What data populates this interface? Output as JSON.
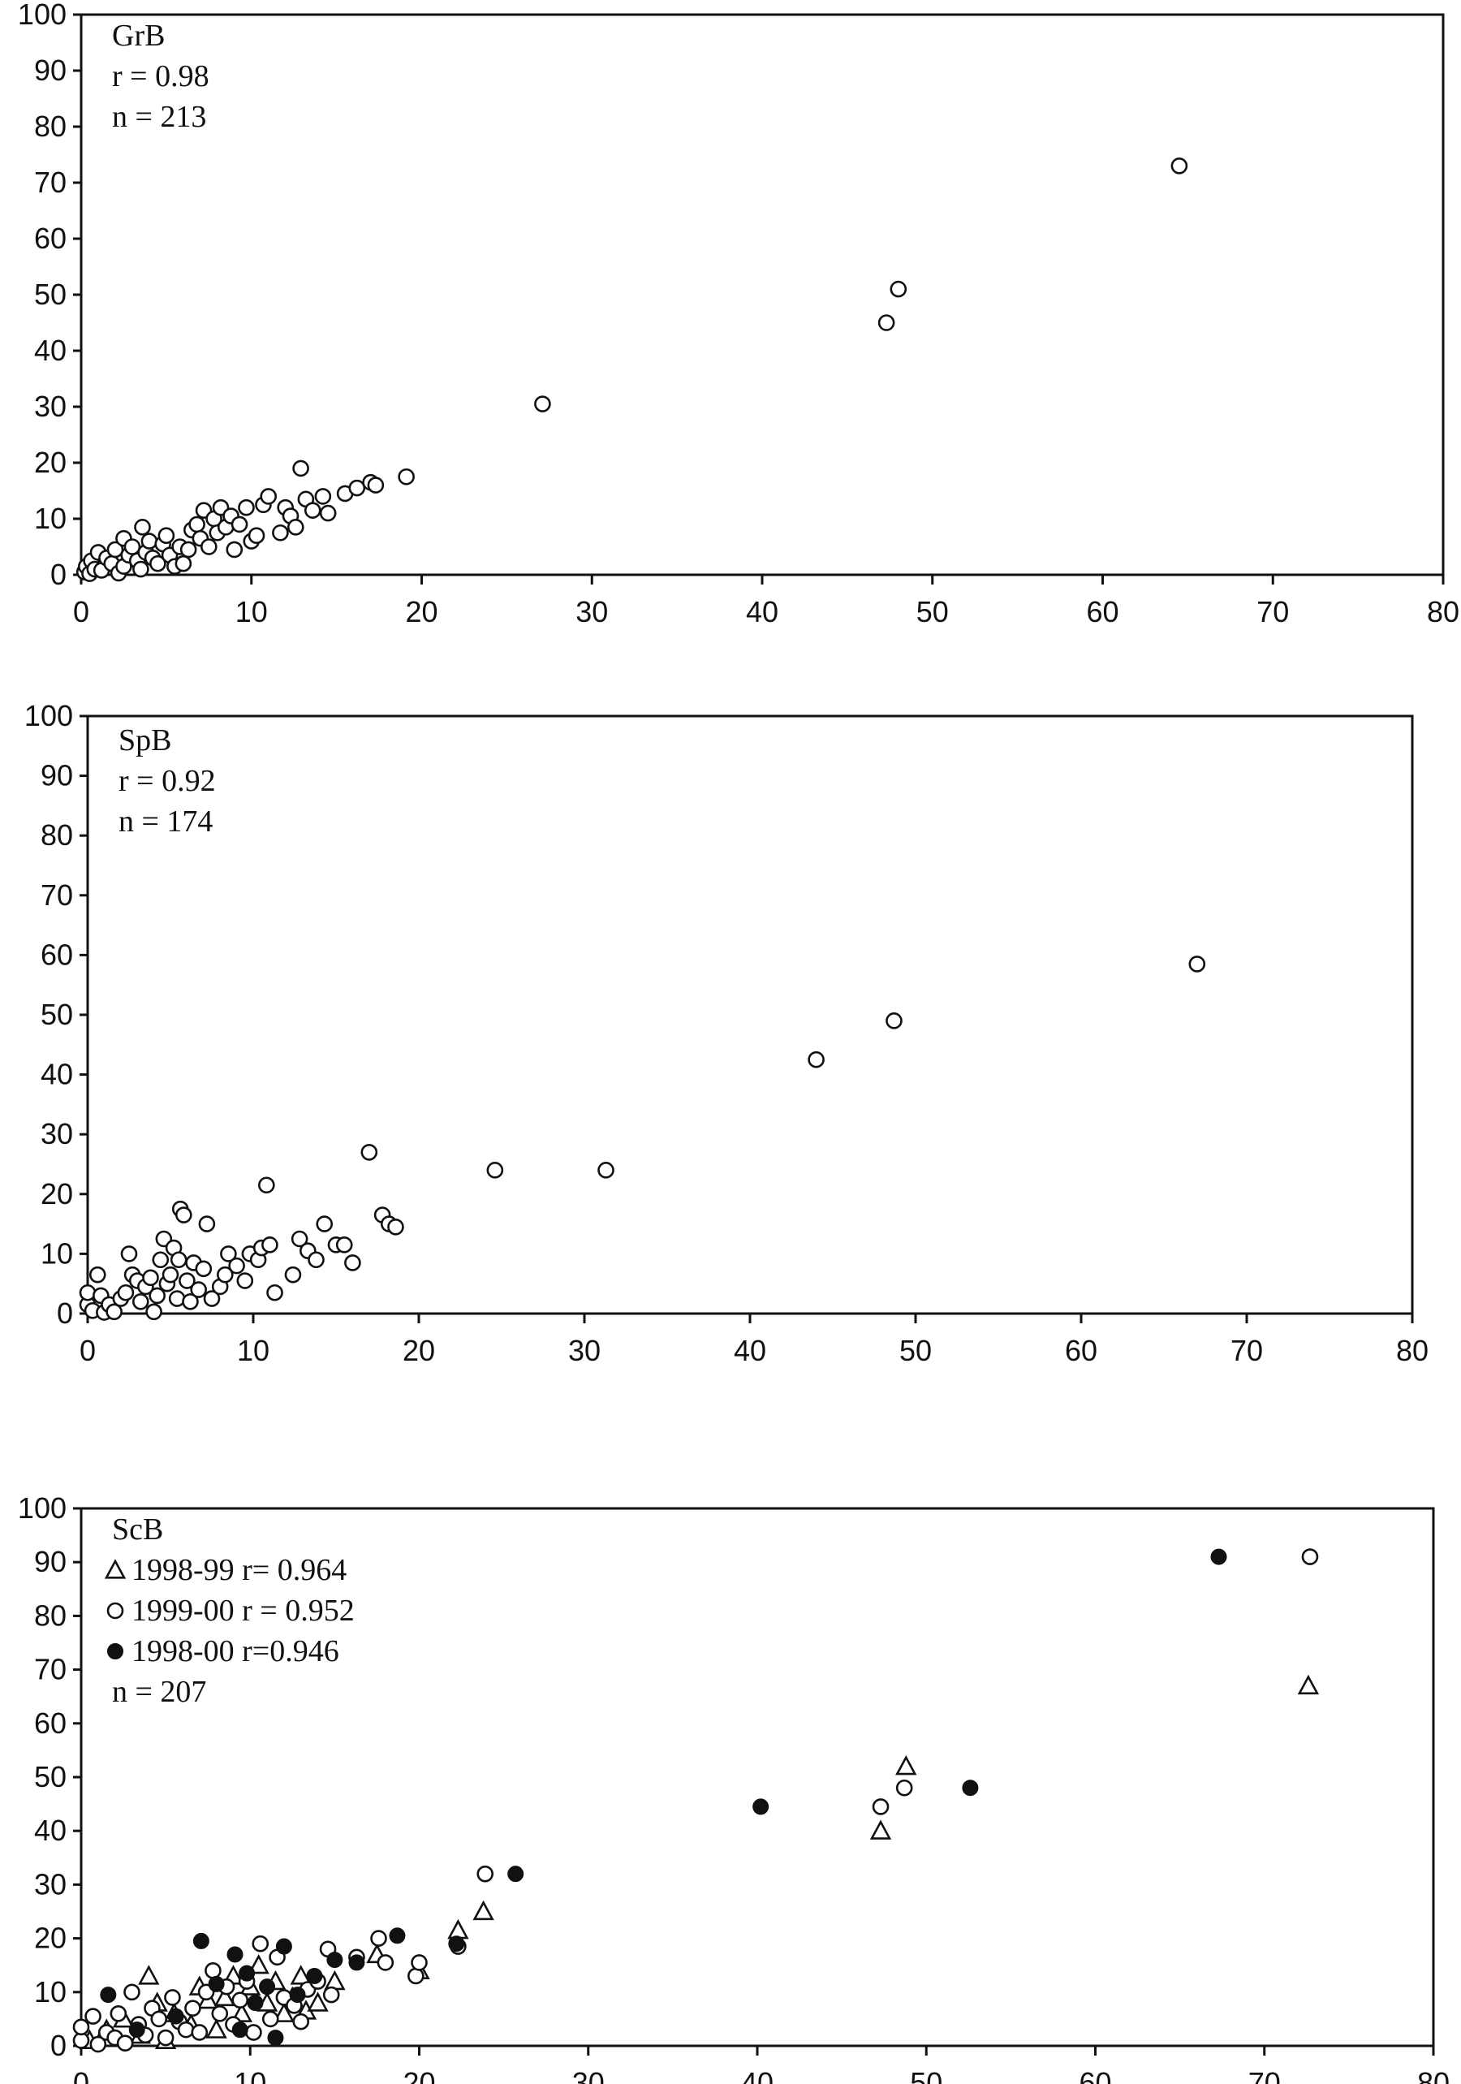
{
  "chart_data": [
    {
      "type": "scatter",
      "xlim": [
        0,
        80
      ],
      "ylim": [
        0,
        100
      ],
      "xticks": [
        "0",
        "10",
        "20",
        "30",
        "40",
        "50",
        "60",
        "70",
        "80"
      ],
      "yticks": [
        "0",
        "10",
        "20",
        "30",
        "40",
        "50",
        "60",
        "70",
        "80",
        "90",
        "100"
      ],
      "annotation": [
        "GrB",
        "r = 0.98",
        "n = 213"
      ],
      "legend": [],
      "grid": false,
      "series": [
        {
          "marker": "open-circle",
          "points": [
            [
              0.2,
              0.5
            ],
            [
              0.3,
              1.5
            ],
            [
              0.5,
              0.2
            ],
            [
              0.6,
              2.5
            ],
            [
              0.8,
              1.0
            ],
            [
              1.0,
              4.0
            ],
            [
              1.2,
              0.8
            ],
            [
              1.5,
              3.0
            ],
            [
              1.8,
              2.0
            ],
            [
              2.0,
              4.5
            ],
            [
              2.2,
              0.3
            ],
            [
              2.5,
              1.5
            ],
            [
              2.8,
              3.5
            ],
            [
              2.5,
              6.5
            ],
            [
              3.0,
              5.0
            ],
            [
              3.3,
              2.5
            ],
            [
              3.5,
              1.0
            ],
            [
              3.6,
              8.5
            ],
            [
              3.8,
              4.0
            ],
            [
              4.0,
              6.0
            ],
            [
              4.2,
              3.0
            ],
            [
              4.5,
              2.0
            ],
            [
              4.8,
              5.5
            ],
            [
              5.0,
              7.0
            ],
            [
              5.2,
              3.5
            ],
            [
              5.5,
              1.5
            ],
            [
              5.8,
              5.0
            ],
            [
              6.0,
              2.0
            ],
            [
              6.3,
              4.5
            ],
            [
              6.5,
              8.0
            ],
            [
              6.8,
              9.0
            ],
            [
              7.0,
              6.5
            ],
            [
              7.2,
              11.5
            ],
            [
              7.5,
              5.0
            ],
            [
              7.8,
              10.0
            ],
            [
              8.0,
              7.5
            ],
            [
              8.2,
              12.0
            ],
            [
              8.5,
              8.5
            ],
            [
              8.8,
              10.5
            ],
            [
              9.0,
              4.5
            ],
            [
              9.3,
              9.0
            ],
            [
              9.7,
              12.0
            ],
            [
              10.0,
              6.0
            ],
            [
              10.3,
              7.0
            ],
            [
              10.7,
              12.5
            ],
            [
              11.0,
              14.0
            ],
            [
              11.7,
              7.5
            ],
            [
              12.0,
              12.0
            ],
            [
              12.3,
              10.5
            ],
            [
              12.6,
              8.5
            ],
            [
              12.9,
              19.0
            ],
            [
              13.2,
              13.5
            ],
            [
              13.6,
              11.5
            ],
            [
              14.2,
              14.0
            ],
            [
              14.5,
              11.0
            ],
            [
              15.5,
              14.5
            ],
            [
              16.2,
              15.5
            ],
            [
              17.0,
              16.5
            ],
            [
              17.3,
              16.0
            ],
            [
              19.1,
              17.5
            ],
            [
              27.1,
              30.5
            ],
            [
              47.3,
              45.0
            ],
            [
              48.0,
              51.0
            ],
            [
              64.5,
              73.0
            ]
          ]
        }
      ]
    },
    {
      "type": "scatter",
      "xlim": [
        0,
        80
      ],
      "ylim": [
        0,
        100
      ],
      "xticks": [
        "0",
        "10",
        "20",
        "30",
        "40",
        "50",
        "60",
        "70",
        "80"
      ],
      "yticks": [
        "0",
        "10",
        "20",
        "30",
        "40",
        "50",
        "60",
        "70",
        "80",
        "90",
        "100"
      ],
      "annotation": [
        "SpB",
        "r = 0.92",
        "n = 174"
      ],
      "legend": [],
      "grid": false,
      "series": [
        {
          "marker": "open-circle",
          "points": [
            [
              0.0,
              1.5
            ],
            [
              0.0,
              3.5
            ],
            [
              0.3,
              0.5
            ],
            [
              0.6,
              6.5
            ],
            [
              0.8,
              3.0
            ],
            [
              1.0,
              0.2
            ],
            [
              1.3,
              1.5
            ],
            [
              1.6,
              0.3
            ],
            [
              2.0,
              2.5
            ],
            [
              2.3,
              3.5
            ],
            [
              2.5,
              10.0
            ],
            [
              2.7,
              6.5
            ],
            [
              3.0,
              5.5
            ],
            [
              3.2,
              2.0
            ],
            [
              3.5,
              4.5
            ],
            [
              3.8,
              6.0
            ],
            [
              4.0,
              0.3
            ],
            [
              4.2,
              3.0
            ],
            [
              4.4,
              9.0
            ],
            [
              4.6,
              12.5
            ],
            [
              4.8,
              5.0
            ],
            [
              5.0,
              6.5
            ],
            [
              5.2,
              11.0
            ],
            [
              5.4,
              2.5
            ],
            [
              5.5,
              9.0
            ],
            [
              5.6,
              17.5
            ],
            [
              5.8,
              16.5
            ],
            [
              6.0,
              5.5
            ],
            [
              6.2,
              2.0
            ],
            [
              6.4,
              8.5
            ],
            [
              6.7,
              4.0
            ],
            [
              7.0,
              7.5
            ],
            [
              7.2,
              15.0
            ],
            [
              7.5,
              2.5
            ],
            [
              8.0,
              4.5
            ],
            [
              8.3,
              6.5
            ],
            [
              8.5,
              10.0
            ],
            [
              9.0,
              8.0
            ],
            [
              9.5,
              5.5
            ],
            [
              9.8,
              10.0
            ],
            [
              10.3,
              9.0
            ],
            [
              10.5,
              11.0
            ],
            [
              10.8,
              21.5
            ],
            [
              11.0,
              11.5
            ],
            [
              11.3,
              3.5
            ],
            [
              12.4,
              6.5
            ],
            [
              12.8,
              12.5
            ],
            [
              13.3,
              10.5
            ],
            [
              13.8,
              9.0
            ],
            [
              14.3,
              15.0
            ],
            [
              15.0,
              11.5
            ],
            [
              15.5,
              11.5
            ],
            [
              16.0,
              8.5
            ],
            [
              17.0,
              27.0
            ],
            [
              17.8,
              16.5
            ],
            [
              18.2,
              15.0
            ],
            [
              18.6,
              14.5
            ],
            [
              24.6,
              24.0
            ],
            [
              31.3,
              24.0
            ],
            [
              44.0,
              42.5
            ],
            [
              48.7,
              49.0
            ],
            [
              67.0,
              58.5
            ]
          ]
        }
      ]
    },
    {
      "type": "scatter",
      "xlim": [
        0,
        80
      ],
      "ylim": [
        0,
        100
      ],
      "xticks": [
        "0",
        "10",
        "20",
        "30",
        "40",
        "50",
        "60",
        "70",
        "80"
      ],
      "yticks": [
        "0",
        "10",
        "20",
        "30",
        "40",
        "50",
        "60",
        "70",
        "80",
        "90",
        "100"
      ],
      "annotation": [
        "ScB",
        "n = 207"
      ],
      "legend": [
        {
          "marker": "open-triangle",
          "label": "1998-99 r= 0.964"
        },
        {
          "marker": "open-circle",
          "label": "1999-00 r = 0.952"
        },
        {
          "marker": "filled-circle",
          "label": "1998-00 r=0.946"
        }
      ],
      "grid": false,
      "series": [
        {
          "name": "1998-99 r= 0.964",
          "marker": "open-triangle",
          "points": [
            [
              0.5,
              1.0
            ],
            [
              1.5,
              3.0
            ],
            [
              2.5,
              5.0
            ],
            [
              3.5,
              2.0
            ],
            [
              4.0,
              13.0
            ],
            [
              4.5,
              8.0
            ],
            [
              5.0,
              1.0
            ],
            [
              5.5,
              6.0
            ],
            [
              6.5,
              4.0
            ],
            [
              7.0,
              11.0
            ],
            [
              7.5,
              8.5
            ],
            [
              8.0,
              3.0
            ],
            [
              8.5,
              9.0
            ],
            [
              9.0,
              13.0
            ],
            [
              9.5,
              6.0
            ],
            [
              10.0,
              11.0
            ],
            [
              10.5,
              15.0
            ],
            [
              11.0,
              8.0
            ],
            [
              11.5,
              12.0
            ],
            [
              12.0,
              6.0
            ],
            [
              12.5,
              9.0
            ],
            [
              13.0,
              13.0
            ],
            [
              13.3,
              6.5
            ],
            [
              14.0,
              8.0
            ],
            [
              15.0,
              12.0
            ],
            [
              17.5,
              17.0
            ],
            [
              20.0,
              14.0
            ],
            [
              22.3,
              21.5
            ],
            [
              23.8,
              25.0
            ],
            [
              47.3,
              40.0
            ],
            [
              48.8,
              52.0
            ],
            [
              72.6,
              67.0
            ]
          ]
        },
        {
          "name": "1999-00 r = 0.952",
          "marker": "open-circle",
          "points": [
            [
              0.0,
              1.0
            ],
            [
              0.0,
              3.5
            ],
            [
              0.7,
              5.5
            ],
            [
              1.0,
              0.3
            ],
            [
              1.5,
              2.5
            ],
            [
              2.0,
              1.5
            ],
            [
              2.2,
              6.0
            ],
            [
              2.6,
              0.5
            ],
            [
              3.0,
              10.0
            ],
            [
              3.4,
              4.0
            ],
            [
              3.8,
              2.0
            ],
            [
              4.2,
              7.0
            ],
            [
              4.6,
              5.0
            ],
            [
              5.0,
              1.5
            ],
            [
              5.4,
              9.0
            ],
            [
              5.8,
              4.5
            ],
            [
              6.2,
              3.0
            ],
            [
              6.6,
              7.0
            ],
            [
              7.0,
              2.5
            ],
            [
              7.4,
              10.0
            ],
            [
              7.8,
              14.0
            ],
            [
              8.2,
              6.0
            ],
            [
              8.6,
              11.0
            ],
            [
              9.0,
              4.0
            ],
            [
              9.4,
              8.5
            ],
            [
              9.8,
              12.0
            ],
            [
              10.2,
              2.5
            ],
            [
              10.6,
              19.0
            ],
            [
              11.2,
              5.0
            ],
            [
              11.6,
              16.5
            ],
            [
              12.0,
              9.0
            ],
            [
              12.6,
              7.5
            ],
            [
              13.0,
              4.5
            ],
            [
              13.4,
              10.5
            ],
            [
              14.0,
              12.0
            ],
            [
              14.6,
              18.0
            ],
            [
              14.8,
              9.5
            ],
            [
              16.3,
              16.5
            ],
            [
              17.6,
              20.0
            ],
            [
              18.0,
              15.5
            ],
            [
              19.8,
              13.0
            ],
            [
              20.0,
              15.5
            ],
            [
              22.3,
              18.5
            ],
            [
              23.9,
              32.0
            ],
            [
              47.3,
              44.5
            ],
            [
              48.7,
              48.0
            ],
            [
              72.7,
              91.0
            ]
          ]
        },
        {
          "name": "1998-00 r=0.946",
          "marker": "filled-circle",
          "points": [
            [
              1.6,
              9.5
            ],
            [
              3.3,
              3.0
            ],
            [
              5.6,
              5.5
            ],
            [
              7.1,
              19.5
            ],
            [
              8.0,
              11.5
            ],
            [
              9.1,
              17.0
            ],
            [
              9.4,
              3.0
            ],
            [
              9.8,
              13.5
            ],
            [
              10.3,
              8.0
            ],
            [
              11.0,
              11.0
            ],
            [
              11.5,
              1.5
            ],
            [
              12.0,
              18.5
            ],
            [
              12.8,
              9.5
            ],
            [
              13.8,
              13.0
            ],
            [
              15.0,
              16.0
            ],
            [
              16.3,
              15.5
            ],
            [
              18.7,
              20.5
            ],
            [
              22.2,
              19.0
            ],
            [
              25.7,
              32.0
            ],
            [
              40.2,
              44.5
            ],
            [
              52.6,
              48.0
            ],
            [
              67.3,
              91.0
            ]
          ]
        }
      ]
    }
  ]
}
